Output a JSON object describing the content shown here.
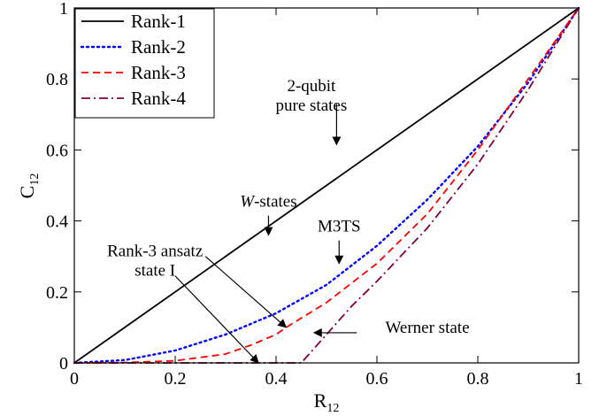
{
  "chart_data": {
    "type": "line",
    "xlabel": "R",
    "xlabel_sub": "12",
    "ylabel": "C",
    "ylabel_sub": "12",
    "xlim": [
      0,
      1
    ],
    "ylim": [
      0,
      1
    ],
    "xticks": [
      "0",
      "0.2",
      "0.4",
      "0.6",
      "0.8",
      "1"
    ],
    "xtick_values": [
      0,
      0.2,
      0.4,
      0.6,
      0.8,
      1
    ],
    "yticks": [
      "0",
      "0.2",
      "0.4",
      "0.6",
      "0.8",
      "1"
    ],
    "ytick_values": [
      0,
      0.2,
      0.4,
      0.6,
      0.8,
      1
    ],
    "grid": false,
    "legend_placement": "top-left",
    "series": [
      {
        "name": "Rank-1",
        "color": "#000000",
        "dash": "solid",
        "x": [
          0,
          1
        ],
        "y": [
          0,
          1
        ]
      },
      {
        "name": "Rank-2",
        "color": "#0000ff",
        "dash": "dotted",
        "x": [
          0,
          0.1,
          0.2,
          0.3,
          0.4,
          0.5,
          0.6,
          0.7,
          0.8,
          0.9,
          1.0
        ],
        "y": [
          0,
          0.008,
          0.035,
          0.08,
          0.14,
          0.22,
          0.33,
          0.46,
          0.61,
          0.79,
          1.0
        ]
      },
      {
        "name": "Rank-3",
        "color": "#ff0000",
        "dash": "dashed",
        "x": [
          0,
          0.1,
          0.2,
          0.3,
          0.35,
          0.4,
          0.42,
          0.5,
          0.6,
          0.7,
          0.8,
          0.9,
          1.0
        ],
        "y": [
          0,
          0.001,
          0.006,
          0.025,
          0.05,
          0.08,
          0.1,
          0.17,
          0.28,
          0.42,
          0.6,
          0.8,
          1.0
        ]
      },
      {
        "name": "Rank-4",
        "color": "#800040",
        "dash": "dashdot",
        "x": [
          0,
          0.45,
          0.5,
          0.55,
          0.6,
          0.7,
          0.8,
          0.9,
          1.0
        ],
        "y": [
          0,
          0.0,
          0.08,
          0.16,
          0.23,
          0.38,
          0.56,
          0.77,
          1.0
        ]
      }
    ],
    "annotations": [
      {
        "lines": [
          "2-qubit",
          "pure states"
        ],
        "text_at": [
          0.47,
          0.765
        ],
        "arrows": [
          {
            "from": [
              0.52,
              0.73
            ],
            "to": [
              0.52,
              0.615
            ]
          }
        ]
      },
      {
        "lines": [
          "W-states"
        ],
        "italic_prefix": "W",
        "text_at": [
          0.385,
          0.44
        ],
        "arrows": [
          {
            "from": [
              0.385,
              0.415
            ],
            "to": [
              0.385,
              0.36
            ]
          }
        ]
      },
      {
        "lines": [
          "M3TS"
        ],
        "text_at": [
          0.525,
          0.37
        ],
        "arrows": [
          {
            "from": [
              0.525,
              0.345
            ],
            "to": [
              0.525,
              0.28
            ]
          }
        ]
      },
      {
        "lines": [
          "Rank-3 ansatz",
          "state I"
        ],
        "text_at": [
          0.16,
          0.3
        ],
        "arrows": [
          {
            "from": [
              0.26,
              0.3
            ],
            "to": [
              0.42,
              0.1
            ]
          },
          {
            "from": [
              0.2,
              0.245
            ],
            "to": [
              0.365,
              0.0
            ]
          }
        ]
      },
      {
        "lines": [
          "Werner state"
        ],
        "text_at": [
          0.7,
          0.085
        ],
        "arrows": [
          {
            "from": [
              0.56,
              0.085
            ],
            "to": [
              0.475,
              0.085
            ]
          }
        ]
      }
    ]
  }
}
